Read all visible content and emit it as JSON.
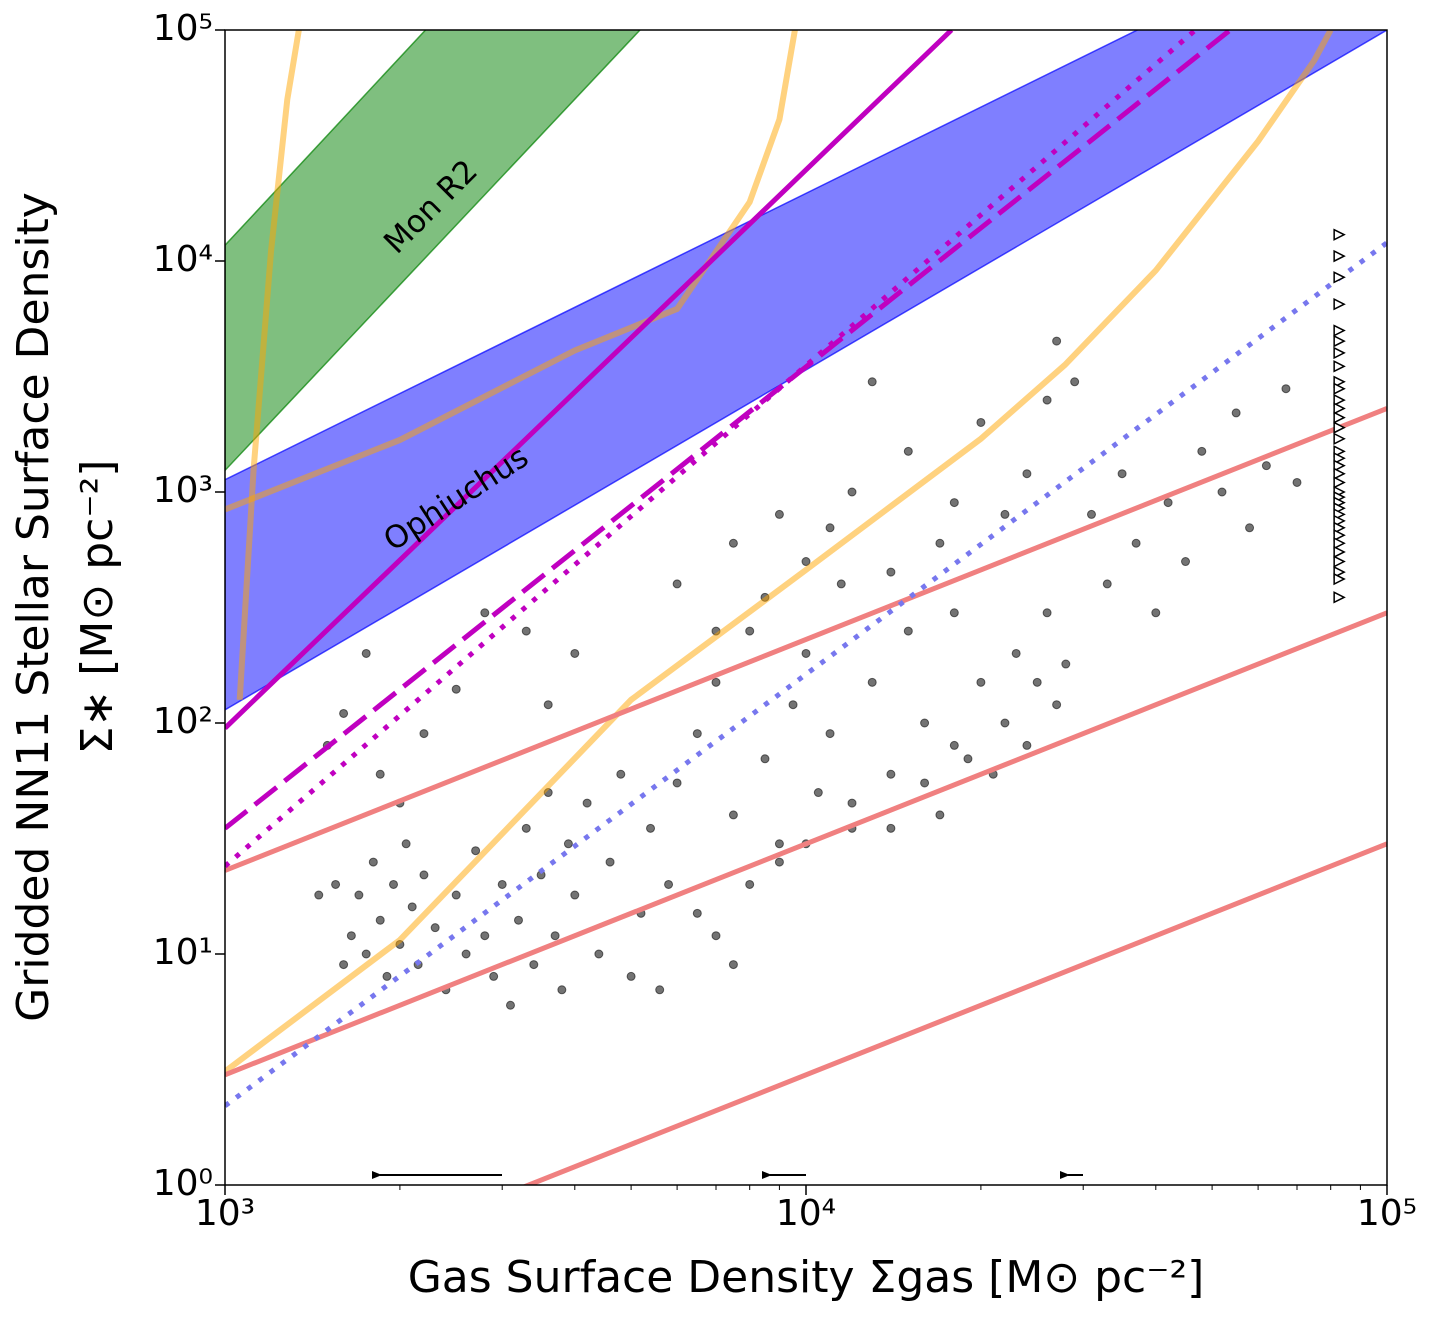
{
  "chart_data": {
    "type": "scatter",
    "xlabel": "Gas Surface Density Σgas [M⊙ pc⁻²]",
    "ylabel": [
      "Gridded NN11 Stellar Surface Density",
      "Σ∗ [M⊙ pc⁻²]"
    ],
    "xscale": "log",
    "yscale": "log",
    "xlim": [
      1000,
      100000
    ],
    "ylim": [
      1,
      100000
    ],
    "xticks": [
      {
        "value": 1000,
        "label": "10³"
      },
      {
        "value": 10000,
        "label": "10⁴"
      },
      {
        "value": 100000,
        "label": "10⁵"
      }
    ],
    "xminorticks": [
      2000,
      3000,
      4000,
      5000,
      6000,
      7000,
      8000,
      9000,
      20000,
      30000,
      40000,
      50000,
      60000,
      70000,
      80000,
      90000
    ],
    "yticks": [
      {
        "value": 1,
        "label": "10⁰"
      },
      {
        "value": 10,
        "label": "10¹"
      },
      {
        "value": 100,
        "label": "10²"
      },
      {
        "value": 1000,
        "label": "10³"
      },
      {
        "value": 10000,
        "label": "10⁴"
      },
      {
        "value": 100000,
        "label": "10⁵"
      }
    ],
    "series": [
      {
        "kind": "band",
        "name": "Mon R2",
        "color": "#008000",
        "alpha": 0.5,
        "x": [
          1000,
          5180
        ],
        "lower": [
          1240,
          100000
        ],
        "upper": [
          11700,
          993000
        ]
      },
      {
        "kind": "band",
        "name": "Ophiuchus",
        "color": "#0000ff",
        "alpha": 0.5,
        "x": [
          1000,
          100000
        ],
        "lower": [
          114,
          100000
        ],
        "upper": [
          1130,
          341000
        ]
      },
      {
        "kind": "line",
        "color": "#ffa500",
        "alpha": 0.5,
        "style": "solid",
        "width": 6,
        "x": [
          1000,
          2000,
          5000,
          10000,
          20000,
          27900,
          40000,
          60000,
          75000,
          80000
        ],
        "values": [
          3.1,
          11.5,
          126,
          460,
          1700,
          3550,
          9100,
          33000,
          74000,
          100000
        ]
      },
      {
        "kind": "line",
        "color": "#ffa500",
        "alpha": 0.5,
        "style": "solid",
        "width": 6,
        "x": [
          1000,
          2000,
          4000,
          6000,
          8000,
          9000,
          9570
        ],
        "values": [
          840,
          1680,
          4100,
          6200,
          18000,
          41000,
          100000
        ]
      },
      {
        "kind": "line",
        "color": "#ffa500",
        "alpha": 0.5,
        "style": "solid",
        "width": 6,
        "x": [
          1060,
          1120,
          1200,
          1280,
          1340
        ],
        "values": [
          126,
          1250,
          11000,
          50000,
          100000
        ]
      },
      {
        "kind": "line",
        "color": "#f08080",
        "alpha": 1,
        "style": "solid",
        "width": 5,
        "x": [
          1000,
          100000
        ],
        "values": [
          23,
          2300
        ]
      },
      {
        "kind": "line",
        "color": "#f08080",
        "alpha": 1,
        "style": "solid",
        "width": 5,
        "x": [
          1000,
          100000
        ],
        "values": [
          3,
          300
        ]
      },
      {
        "kind": "line",
        "color": "#f08080",
        "alpha": 1,
        "style": "solid",
        "width": 5,
        "x": [
          1000,
          100000
        ],
        "values": [
          0.3,
          30
        ]
      },
      {
        "kind": "line",
        "color": "#7777ee",
        "alpha": 1,
        "style": "dotted",
        "width": 5,
        "x": [
          1000,
          100000
        ],
        "values": [
          2.2,
          12000
        ]
      },
      {
        "kind": "line",
        "color": "#c000c0",
        "alpha": 1,
        "style": "solid",
        "width": 5,
        "x": [
          1000,
          17800
        ],
        "values": [
          95,
          100000
        ]
      },
      {
        "kind": "line",
        "color": "#c000c0",
        "alpha": 1,
        "style": "dashed",
        "width": 5,
        "x": [
          1000,
          53700
        ],
        "values": [
          35,
          100000
        ]
      },
      {
        "kind": "line",
        "color": "#c000c0",
        "alpha": 1,
        "style": "dotted",
        "width": 5,
        "x": [
          1000,
          46800
        ],
        "values": [
          24,
          100000
        ]
      },
      {
        "kind": "points",
        "color": "#000000",
        "alpha": 0.55,
        "x": [
          1600,
          1650,
          1700,
          1750,
          1800,
          1850,
          1900,
          1950,
          2000,
          2050,
          2100,
          2150,
          2200,
          2300,
          2400,
          2500,
          2600,
          2700,
          2800,
          2900,
          3000,
          3100,
          3200,
          3300,
          3400,
          3500,
          3600,
          3700,
          3800,
          3900,
          4000,
          4200,
          4400,
          4600,
          4800,
          5000,
          5200,
          5400,
          5600,
          5800,
          6000,
          1500,
          1600,
          1750,
          1850,
          2000,
          2200,
          2500,
          2800,
          3300,
          3600,
          4000,
          1550,
          1450,
          6500,
          7000,
          7500,
          8000,
          8500,
          9000,
          9500,
          10000,
          10500,
          11000,
          11500,
          12000,
          13000,
          14000,
          15000,
          16000,
          17000,
          18000,
          19000,
          20000,
          6000,
          7000,
          7500,
          8500,
          9000,
          10000,
          11000,
          12000,
          13000,
          14000,
          15000,
          17000,
          18000,
          20000,
          22000,
          24000,
          26000,
          27000,
          29000,
          21000,
          22000,
          23000,
          24000,
          25000,
          26000,
          27000,
          28000,
          31000,
          33000,
          35000,
          37000,
          40000,
          42000,
          45000,
          48000,
          52000,
          55000,
          58000,
          62000,
          67000,
          70000,
          7000,
          8000,
          9000,
          10000,
          12000,
          14000,
          16000,
          18000,
          7500,
          6500
        ],
        "values": [
          9,
          12,
          18,
          10,
          25,
          14,
          8,
          20,
          11,
          30,
          16,
          9,
          22,
          13,
          7,
          18,
          10,
          28,
          12,
          8,
          20,
          6,
          14,
          35,
          9,
          22,
          50,
          12,
          7,
          30,
          18,
          45,
          10,
          25,
          60,
          8,
          15,
          35,
          7,
          20,
          55,
          80,
          110,
          200,
          60,
          45,
          90,
          140,
          300,
          250,
          120,
          200,
          20,
          18,
          90,
          150,
          40,
          250,
          70,
          30,
          120,
          200,
          50,
          90,
          400,
          35,
          150,
          60,
          250,
          100,
          40,
          300,
          70,
          150,
          400,
          250,
          600,
          350,
          800,
          500,
          700,
          1000,
          3000,
          450,
          1500,
          600,
          900,
          2000,
          800,
          1200,
          2500,
          4500,
          3000,
          60,
          100,
          200,
          80,
          150,
          300,
          120,
          180,
          800,
          400,
          1200,
          600,
          300,
          900,
          500,
          1500,
          1000,
          2200,
          700,
          1300,
          2800,
          1100,
          12,
          20,
          25,
          30,
          45,
          35,
          55,
          80,
          9,
          15
        ]
      },
      {
        "kind": "limits",
        "color": "#000000",
        "alpha": 1,
        "x": [
          82400,
          82400,
          82400,
          82400,
          82400,
          82400,
          82400,
          82400,
          82400,
          82400,
          82400,
          82400,
          82400,
          82400,
          82400,
          82400,
          82400,
          82400,
          82400,
          82400,
          82400,
          82400,
          82400,
          82400,
          82400,
          82400,
          82400,
          82400,
          82400,
          82400,
          82400,
          82400,
          82400,
          82400
        ],
        "values": [
          13000,
          10500,
          8500,
          6500,
          5000,
          4500,
          4000,
          3500,
          3000,
          2800,
          2500,
          2300,
          2100,
          1900,
          1700,
          1500,
          1400,
          1300,
          1200,
          1100,
          1000,
          950,
          900,
          850,
          800,
          750,
          700,
          650,
          600,
          550,
          500,
          450,
          420,
          350
        ]
      }
    ]
  }
}
